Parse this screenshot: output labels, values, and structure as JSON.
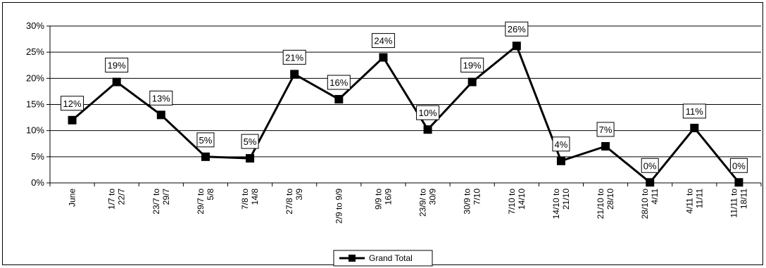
{
  "chart_data": {
    "type": "line",
    "categories": [
      [
        "June"
      ],
      [
        "1/7 to",
        "22/7"
      ],
      [
        "23/7 to",
        "29/7"
      ],
      [
        "29/7 to",
        "5/8"
      ],
      [
        "7/8 to",
        "14/8"
      ],
      [
        "27/8 to",
        "3/9"
      ],
      [
        "2/9 to 9/9"
      ],
      [
        "9/9 to",
        "16/9"
      ],
      [
        "23/9/ to",
        "30/9"
      ],
      [
        "30/9 to",
        "7/10"
      ],
      [
        "7/10 to",
        "14/10"
      ],
      [
        "14/10 to",
        "21/10"
      ],
      [
        "21/10 to",
        "28/10"
      ],
      [
        "28/10 to",
        "4/11"
      ],
      [
        "4/11 to",
        "11/11"
      ],
      [
        "11/11 to",
        "18/11"
      ]
    ],
    "series": [
      {
        "name": "Grand Total",
        "values": [
          12.0,
          19.3,
          13.0,
          5.0,
          4.7,
          20.8,
          16.0,
          24.0,
          10.2,
          19.3,
          26.2,
          4.2,
          7.0,
          0.1,
          10.5,
          0.1
        ],
        "labels": [
          "12%",
          "19%",
          "13%",
          "5%",
          "5%",
          "21%",
          "16%",
          "24%",
          "10%",
          "19%",
          "26%",
          "4%",
          "7%",
          "0%",
          "11%",
          "0%"
        ],
        "color": "#000000"
      }
    ],
    "y_ticks": [
      "0%",
      "5%",
      "10%",
      "15%",
      "20%",
      "25%",
      "30%"
    ],
    "ylim": [
      0,
      30
    ],
    "grid": true,
    "legend_position": "bottom-center"
  }
}
